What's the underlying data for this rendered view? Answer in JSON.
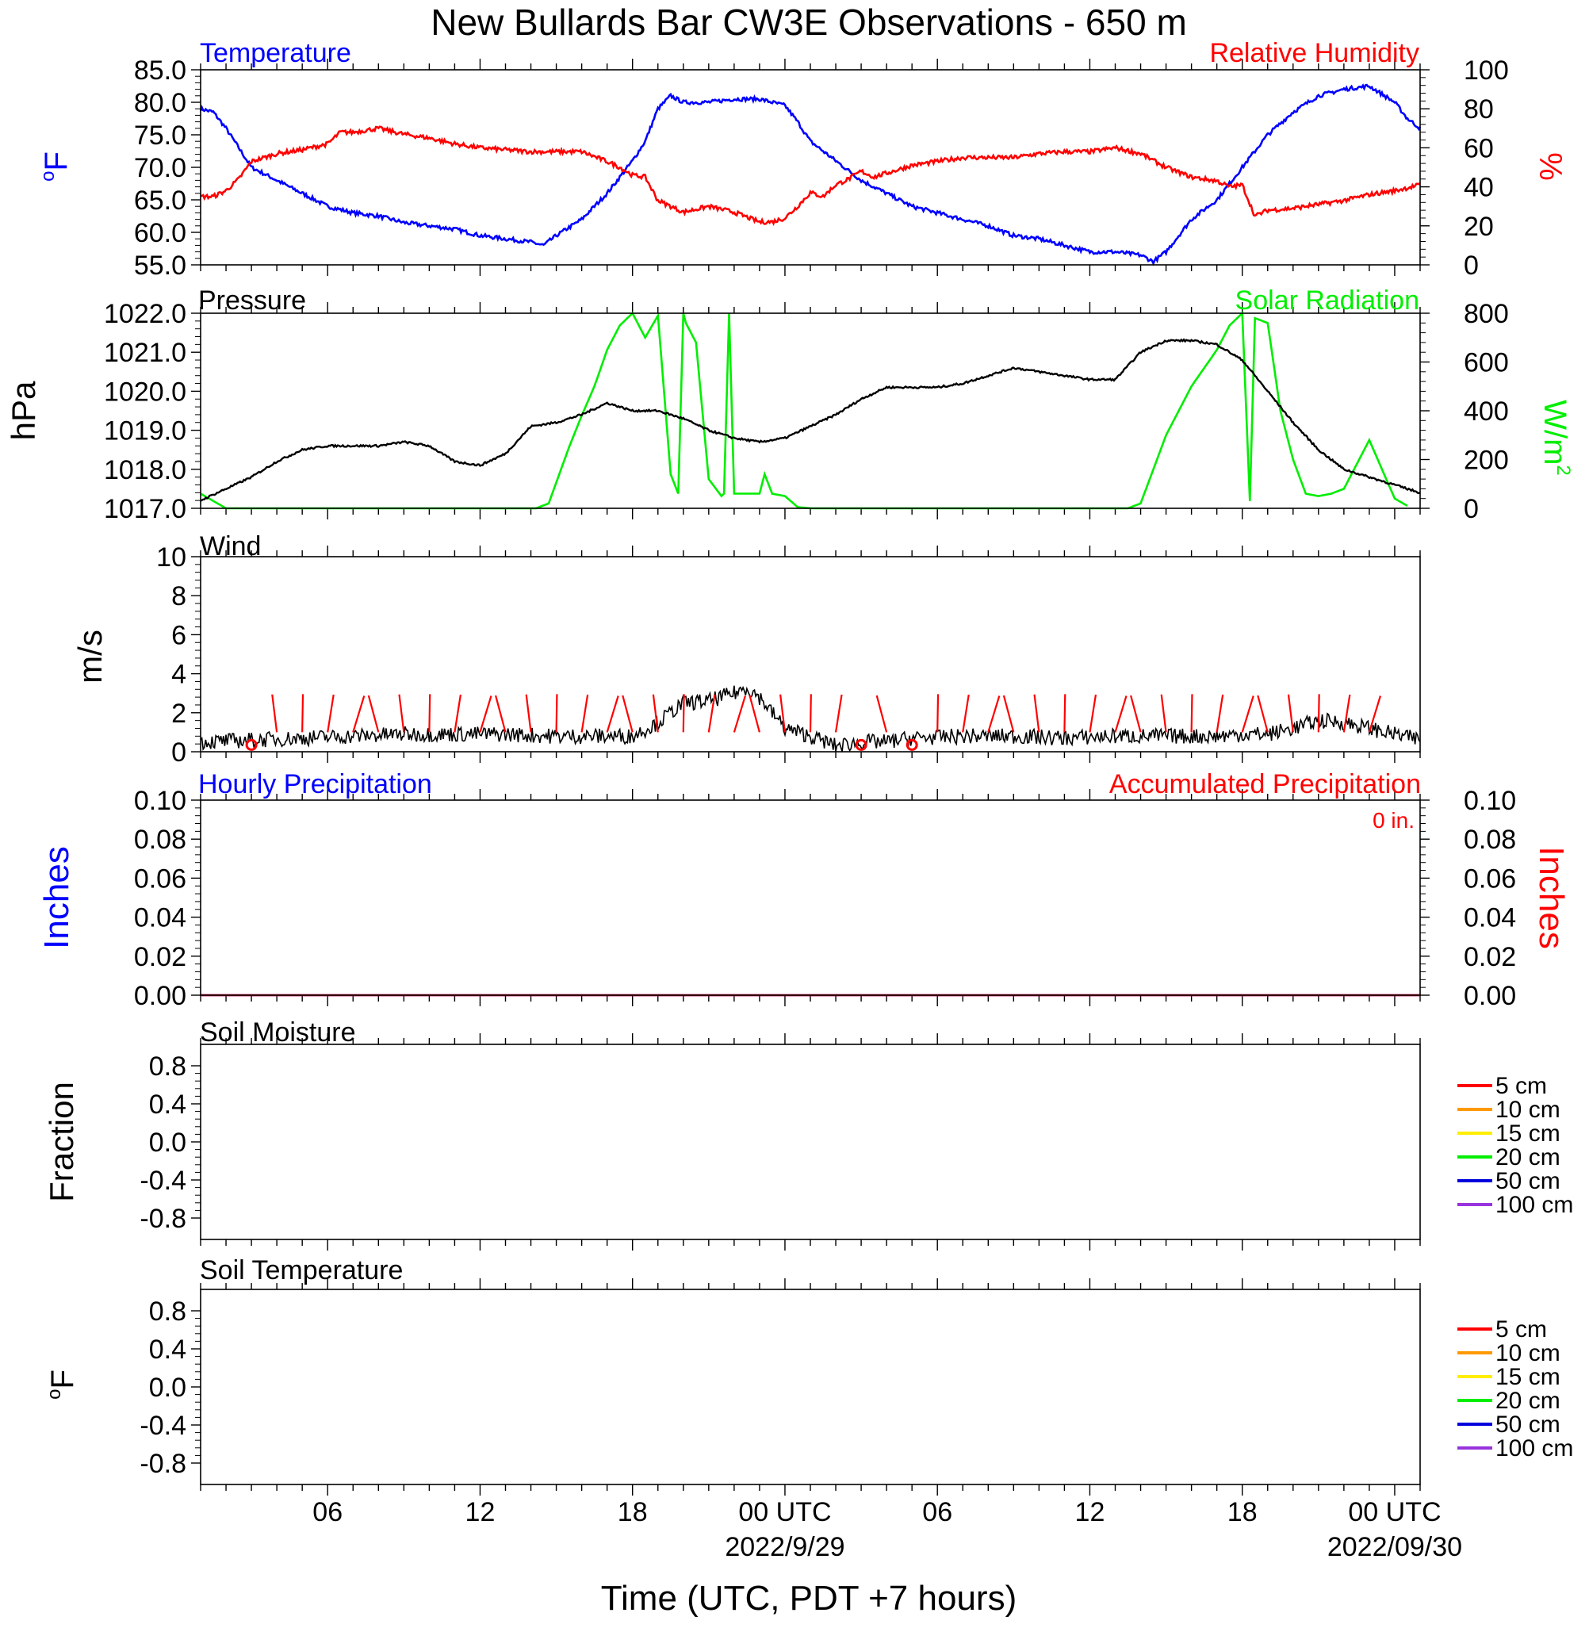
{
  "title": "New Bullards Bar CW3E Observations - 650 m",
  "x_axis": {
    "label": "Time (UTC, PDT +7 hours)",
    "range_hours": [
      0,
      48
    ],
    "major_ticks": [
      {
        "hour": 5,
        "label": "06"
      },
      {
        "hour": 11,
        "label": "12"
      },
      {
        "hour": 17,
        "label": "18"
      },
      {
        "hour": 23,
        "label": "00 UTC",
        "date": "2022/9/29"
      },
      {
        "hour": 29,
        "label": "06"
      },
      {
        "hour": 35,
        "label": "12"
      },
      {
        "hour": 41,
        "label": "18"
      },
      {
        "hour": 47,
        "label": "00 UTC",
        "date": "2022/09/30"
      }
    ]
  },
  "panels": {
    "temperature": {
      "left_title": "Temperature",
      "right_title": "Relative Humidity",
      "left_unit": "oF",
      "right_unit": "%",
      "left_ticks": [
        "85.0",
        "80.0",
        "75.0",
        "70.0",
        "65.0",
        "60.0",
        "55.0"
      ],
      "right_ticks": [
        "100",
        "80",
        "60",
        "40",
        "20",
        "0"
      ]
    },
    "pressure": {
      "left_title": "Pressure",
      "right_title": "Solar Radiation",
      "left_unit": "hPa",
      "right_unit": "W/m",
      "right_unit_sup": "2",
      "left_ticks": [
        "1022.0",
        "1021.0",
        "1020.0",
        "1019.0",
        "1018.0",
        "1017.0"
      ],
      "right_ticks": [
        "800",
        "600",
        "400",
        "200",
        "0"
      ]
    },
    "wind": {
      "left_title": "Wind",
      "left_unit": "m/s",
      "left_ticks": [
        "10",
        "8",
        "6",
        "4",
        "2",
        "0"
      ]
    },
    "precip": {
      "left_title": "Hourly Precipitation",
      "right_title": "Accumulated Precipitation",
      "total_label": "0 in.",
      "left_unit": "Inches",
      "right_unit": "Inches",
      "left_ticks": [
        "0.10",
        "0.08",
        "0.06",
        "0.04",
        "0.02",
        "0.00"
      ],
      "right_ticks": [
        "0.10",
        "0.08",
        "0.06",
        "0.04",
        "0.02",
        "0.00"
      ]
    },
    "soil_moisture": {
      "left_title": "Soil Moisture",
      "left_unit": "Fraction",
      "left_ticks": [
        "0.8",
        "0.4",
        "0.0",
        "-0.4",
        "-0.8"
      ],
      "legend": [
        {
          "label": "5 cm",
          "color": "#ff0000"
        },
        {
          "label": "10 cm",
          "color": "#ff9900"
        },
        {
          "label": "15 cm",
          "color": "#ffee00"
        },
        {
          "label": "20 cm",
          "color": "#00ee00"
        },
        {
          "label": "50 cm",
          "color": "#0000dd"
        },
        {
          "label": "100 cm",
          "color": "#9933dd"
        }
      ]
    },
    "soil_temperature": {
      "left_title": "Soil Temperature",
      "left_unit": "oF",
      "left_ticks": [
        "0.8",
        "0.4",
        "0.0",
        "-0.4",
        "-0.8"
      ],
      "legend": [
        {
          "label": "5 cm",
          "color": "#ff0000"
        },
        {
          "label": "10 cm",
          "color": "#ff9900"
        },
        {
          "label": "15 cm",
          "color": "#ffee00"
        },
        {
          "label": "20 cm",
          "color": "#00ee00"
        },
        {
          "label": "50 cm",
          "color": "#0000dd"
        },
        {
          "label": "100 cm",
          "color": "#9933dd"
        }
      ]
    }
  },
  "chart_data": [
    {
      "type": "line",
      "panel": "temperature",
      "x_units": "hours since start of plot (UTC)",
      "ylim_left": [
        55,
        85
      ],
      "ylim_right": [
        0,
        100
      ],
      "series": [
        {
          "name": "Temperature",
          "axis": "left",
          "color": "#0000ff",
          "x": [
            0,
            0.5,
            1,
            1.5,
            2,
            3,
            4,
            5,
            6,
            7,
            8,
            9,
            10,
            11,
            12,
            13,
            13.5,
            14,
            15,
            16,
            17,
            17.5,
            18,
            18.5,
            19,
            20,
            21,
            22,
            23,
            23.5,
            24,
            25,
            26,
            26.5,
            27,
            28,
            29,
            30,
            31,
            32,
            33,
            34,
            35,
            36,
            37,
            37.5,
            38,
            39,
            40,
            41,
            42,
            43,
            44,
            45,
            46,
            47,
            47.5,
            48
          ],
          "y": [
            79,
            78.5,
            76,
            73,
            70,
            68,
            66,
            64,
            63,
            62.5,
            61.5,
            61,
            60.5,
            59.5,
            59,
            58.5,
            58,
            59.5,
            62,
            66,
            71,
            74,
            79,
            81,
            80,
            80,
            80.5,
            80.5,
            79.5,
            77,
            74,
            71,
            68,
            67,
            66,
            64,
            63,
            62,
            61,
            59.5,
            59,
            58,
            57,
            57,
            56.5,
            55.5,
            57,
            62,
            65,
            70,
            75,
            78.5,
            81,
            82,
            82.5,
            80,
            77.5,
            76
          ]
        },
        {
          "name": "Relative Humidity",
          "axis": "right",
          "color": "#ff0000",
          "x": [
            0,
            0.5,
            1,
            1.5,
            2,
            3,
            4,
            5,
            5.5,
            6,
            7,
            8,
            9,
            10,
            11,
            12,
            13,
            14,
            15,
            16,
            16.5,
            17,
            17.5,
            18,
            19,
            20,
            21,
            22,
            22.5,
            23,
            23.5,
            24,
            24.5,
            25,
            25.5,
            26,
            26.5,
            27,
            28,
            29,
            30,
            31,
            32,
            33,
            34,
            35,
            36,
            37,
            38,
            39,
            40,
            40.5,
            41,
            41.5,
            42,
            43,
            44,
            45,
            46,
            47,
            48
          ],
          "y": [
            35,
            35,
            38,
            44,
            53,
            57,
            59,
            62,
            68,
            68,
            70,
            67,
            65,
            62,
            60,
            59,
            58,
            58,
            58,
            53,
            50,
            46,
            45,
            33,
            27,
            30,
            27,
            22,
            22,
            24,
            30,
            37,
            35,
            41,
            44,
            48,
            45,
            47,
            51,
            53,
            55,
            55,
            55,
            57,
            58,
            58,
            60,
            57,
            50,
            45,
            43,
            40,
            41,
            25,
            28,
            29,
            31,
            33,
            36,
            38,
            41
          ]
        }
      ]
    },
    {
      "type": "line",
      "panel": "pressure",
      "x_units": "hours since start of plot (UTC)",
      "ylim_left": [
        1017,
        1022
      ],
      "ylim_right": [
        0,
        800
      ],
      "series": [
        {
          "name": "Pressure",
          "axis": "left",
          "color": "#000000",
          "x": [
            0,
            1,
            2,
            3,
            4,
            5,
            6,
            7,
            8,
            9,
            10,
            11,
            12,
            13,
            14,
            15,
            16,
            16.5,
            17,
            18,
            19,
            20,
            21,
            22,
            23,
            24,
            25,
            26,
            27,
            28,
            29,
            30,
            31,
            32,
            33,
            34,
            35,
            36,
            37,
            38,
            39,
            40,
            41,
            42,
            43,
            44,
            45,
            46,
            47,
            48
          ],
          "y": [
            1017.2,
            1017.5,
            1017.8,
            1018.2,
            1018.5,
            1018.6,
            1018.6,
            1018.6,
            1018.7,
            1018.6,
            1018.2,
            1018.1,
            1018.4,
            1019.1,
            1019.2,
            1019.4,
            1019.7,
            1019.6,
            1019.5,
            1019.5,
            1019.3,
            1019.0,
            1018.8,
            1018.7,
            1018.8,
            1019.1,
            1019.4,
            1019.8,
            1020.1,
            1020.1,
            1020.1,
            1020.2,
            1020.4,
            1020.6,
            1020.5,
            1020.4,
            1020.3,
            1020.3,
            1021.0,
            1021.3,
            1021.3,
            1021.2,
            1020.8,
            1020.0,
            1019.2,
            1018.5,
            1018.0,
            1017.8,
            1017.6,
            1017.4
          ]
        },
        {
          "name": "Solar Radiation",
          "axis": "right",
          "color": "#00ee00",
          "x": [
            0,
            0.5,
            1,
            13.2,
            13.7,
            14.5,
            15,
            15.5,
            16,
            16.5,
            17,
            17.5,
            18,
            18.5,
            18.8,
            19,
            19.1,
            19.5,
            20,
            20.5,
            20.6,
            20.8,
            21,
            22,
            22.2,
            22.5,
            23,
            23.5,
            24,
            36.5,
            37,
            38,
            39,
            40,
            40.5,
            41,
            41.3,
            41.5,
            42,
            42.5,
            43,
            43.5,
            44,
            44.5,
            45,
            46,
            47,
            47.5
          ],
          "y": [
            60,
            30,
            0,
            0,
            20,
            250,
            380,
            500,
            650,
            750,
            800,
            700,
            790,
            140,
            60,
            800,
            760,
            680,
            120,
            50,
            60,
            800,
            60,
            60,
            140,
            60,
            50,
            5,
            0,
            0,
            20,
            300,
            500,
            650,
            750,
            800,
            30,
            780,
            760,
            400,
            200,
            60,
            50,
            60,
            80,
            280,
            40,
            10
          ]
        }
      ]
    },
    {
      "type": "line",
      "panel": "wind",
      "x_units": "hours since start of plot (UTC)",
      "ylim": [
        0,
        10
      ],
      "series": [
        {
          "name": "Wind Speed",
          "color": "#000000",
          "x": [
            0,
            2,
            4,
            6,
            8,
            10,
            12,
            14,
            16,
            17,
            18,
            19,
            20,
            21,
            21.5,
            22,
            23,
            24,
            25,
            26,
            27,
            28,
            30,
            32,
            34,
            36,
            38,
            40,
            41,
            42,
            43,
            44,
            45,
            46,
            47,
            48
          ],
          "y": [
            0.5,
            0.6,
            0.7,
            0.8,
            0.9,
            0.9,
            0.9,
            0.8,
            0.8,
            0.8,
            1.5,
            2.5,
            2.6,
            3.0,
            3.3,
            2.8,
            1.2,
            0.8,
            0.3,
            0.5,
            0.5,
            0.7,
            0.8,
            0.8,
            0.7,
            0.8,
            0.8,
            0.8,
            0.9,
            0.9,
            1.2,
            1.6,
            1.5,
            1.2,
            0.9,
            0.6
          ]
        },
        {
          "name": "Wind Barbs",
          "color": "#ff0000",
          "x": [
            2,
            3,
            4,
            5,
            6,
            7,
            8,
            9,
            10,
            11,
            12,
            13,
            14,
            15,
            16,
            17,
            18,
            19,
            20,
            21,
            22,
            23,
            24,
            25,
            26,
            27,
            28,
            29,
            30,
            31,
            32,
            33,
            34,
            35,
            36,
            37,
            38,
            39,
            40,
            41,
            42,
            43,
            44,
            45,
            46
          ],
          "calm_at": [
            2,
            26,
            28
          ]
        }
      ]
    },
    {
      "type": "line",
      "panel": "precip",
      "x_units": "hours since start of plot (UTC)",
      "ylim": [
        0,
        0.1
      ],
      "series": [
        {
          "name": "Hourly Precipitation",
          "color": "#0000ff",
          "x": [
            0,
            48
          ],
          "y": [
            0,
            0
          ]
        },
        {
          "name": "Accumulated Precipitation",
          "color": "#ff0000",
          "x": [
            0,
            48
          ],
          "y": [
            0,
            0
          ]
        }
      ]
    }
  ]
}
